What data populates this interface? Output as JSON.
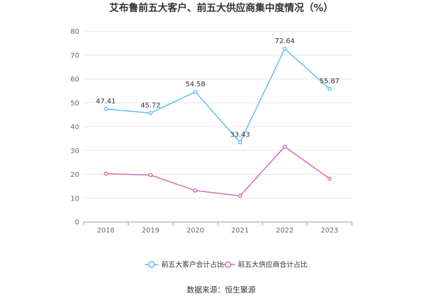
{
  "chart_data": {
    "type": "line",
    "title": "艾布鲁前五大客户、前五大供应商集中度情况（%）",
    "categories": [
      "2018",
      "2019",
      "2020",
      "2021",
      "2022",
      "2023"
    ],
    "ylim": [
      0,
      80
    ],
    "yticks": [
      0,
      10,
      20,
      30,
      40,
      50,
      60,
      70,
      80
    ],
    "grid": true,
    "legend_position": "bottom",
    "series": [
      {
        "name": "前五大客户合计占比",
        "values": [
          47.41,
          45.72,
          54.58,
          33.43,
          72.64,
          55.87
        ],
        "labels": [
          "47.41",
          "45.72",
          "54.58",
          "33.43",
          "72.64",
          "55.87"
        ],
        "color": "#5bc0eb"
      },
      {
        "name": "前五大供应商合计占比",
        "values": [
          20.3,
          19.7,
          13.2,
          11.0,
          31.6,
          18.2
        ],
        "color": "#d46ab1"
      }
    ],
    "source": "数据来源：恒生聚源"
  }
}
